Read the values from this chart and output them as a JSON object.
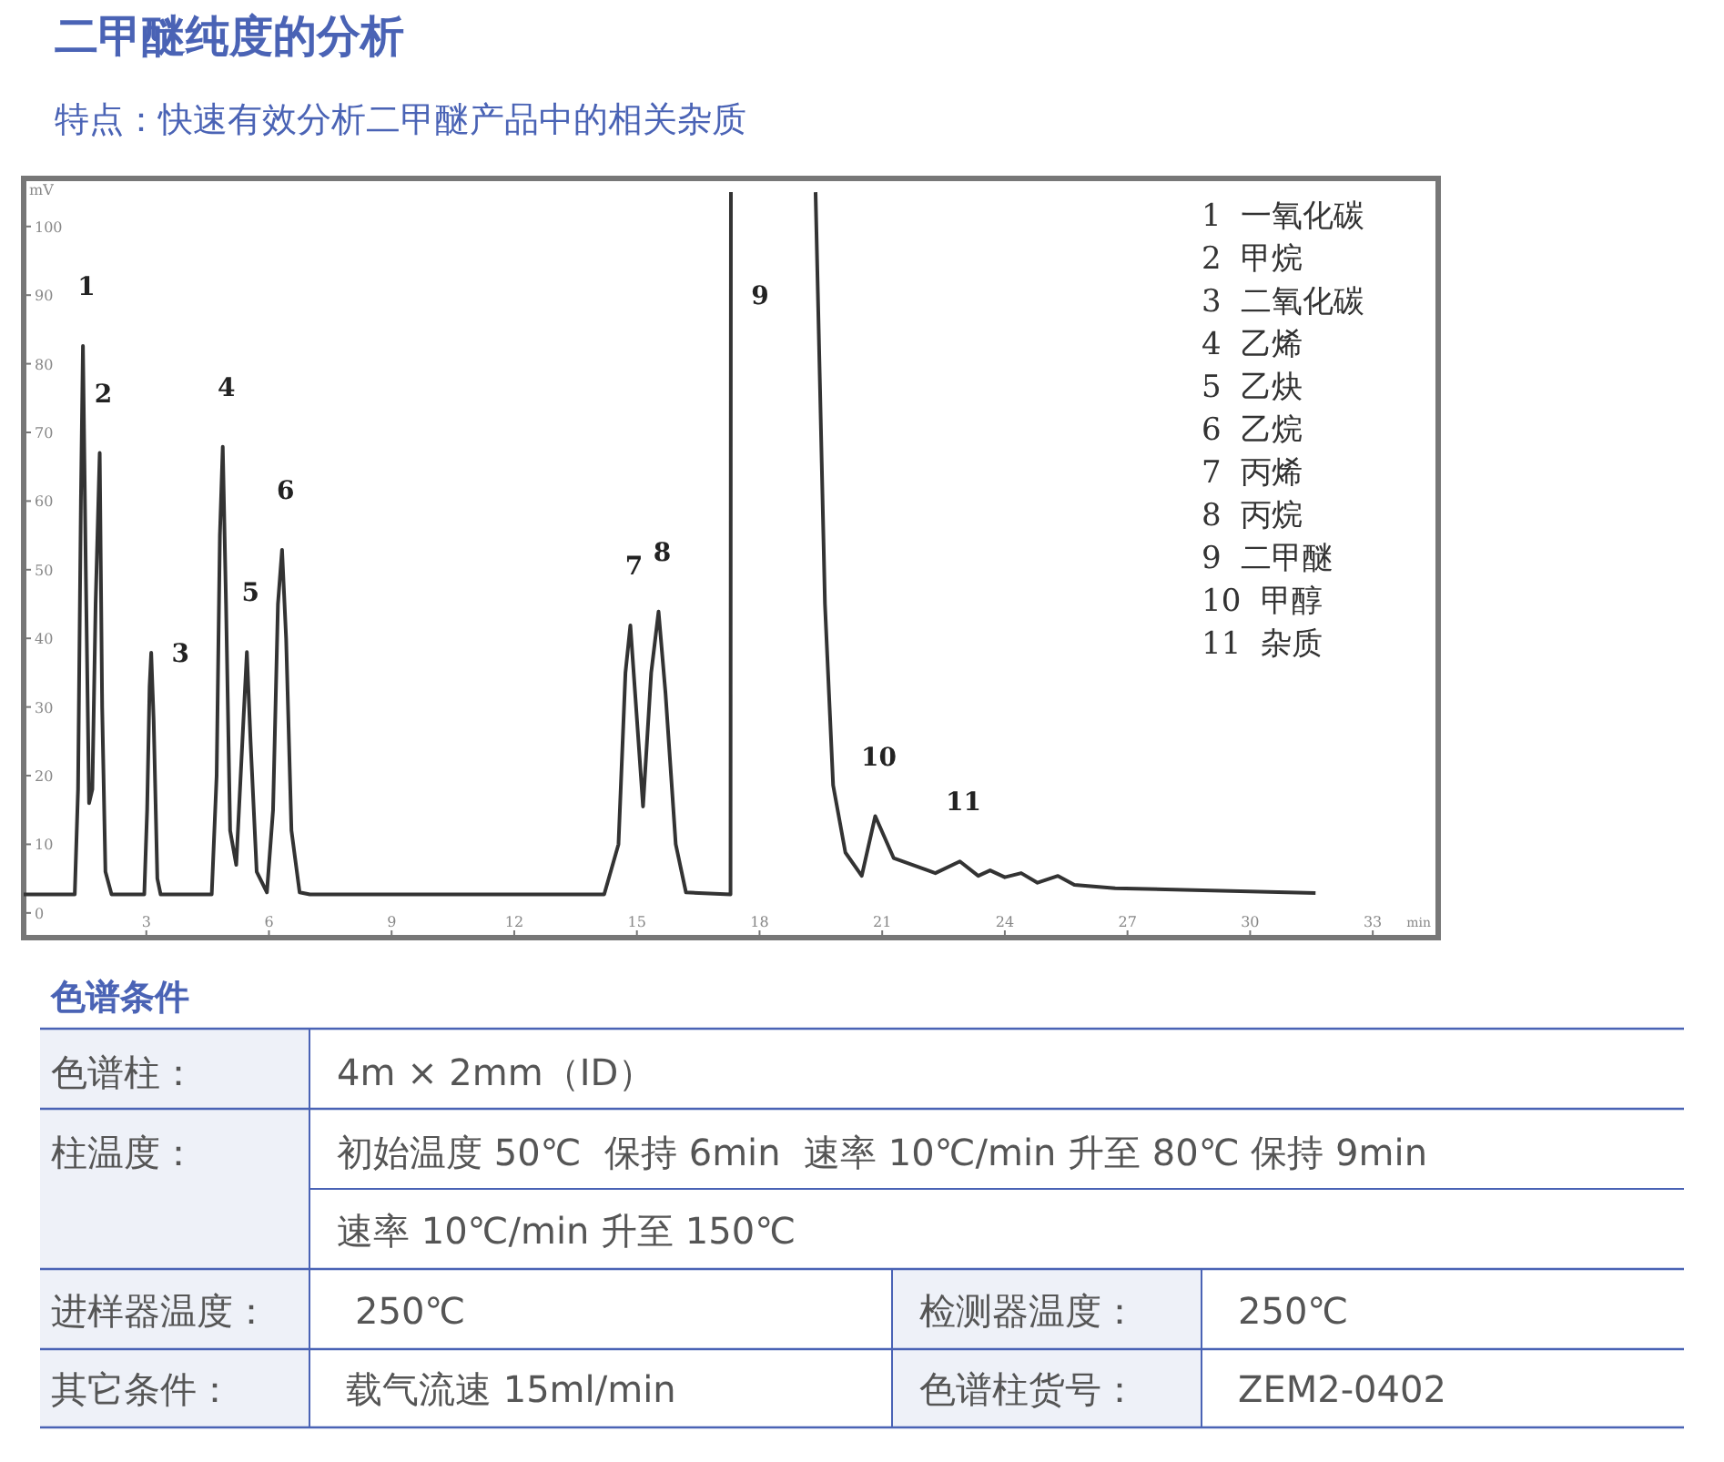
{
  "chart_data": {
    "type": "line",
    "title": "二甲醚纯度的分析",
    "subtitle": "特点：快速有效分析二甲醚产品中的相关杂质",
    "xlabel": "min",
    "ylabel": "mV",
    "xlim": [
      0,
      34.6
    ],
    "ylim": [
      -3.6,
      107
    ],
    "xticks": [
      3,
      6,
      9,
      12,
      15,
      18,
      21,
      24,
      27,
      30,
      33
    ],
    "yticks": [
      0,
      10,
      20,
      30,
      40,
      50,
      60,
      70,
      80,
      90,
      100
    ],
    "series": [
      {
        "color": "#333333",
        "x": [
          0,
          1.25,
          1.33,
          1.4,
          1.45,
          1.52,
          1.6,
          1.68,
          1.76,
          1.86,
          1.92,
          2.0,
          2.15,
          2.95,
          3.02,
          3.08,
          3.12,
          3.18,
          3.27,
          3.35,
          4.6,
          4.72,
          4.8,
          4.87,
          4.95,
          5.05,
          5.2,
          5.35,
          5.46,
          5.55,
          5.7,
          5.95,
          6.1,
          6.22,
          6.32,
          6.42,
          6.55,
          6.75,
          7.0,
          14.2,
          14.55,
          14.72,
          14.84,
          14.98,
          15.15,
          15.35,
          15.53,
          15.7,
          15.95,
          16.2,
          17.29,
          17.3
        ],
        "values": [
          2.7,
          2.7,
          18,
          60,
          82.6,
          50,
          16,
          18,
          45,
          67,
          30,
          6,
          2.7,
          2.7,
          15,
          33,
          37.9,
          28,
          5,
          2.7,
          2.7,
          20,
          55,
          67.9,
          45,
          12,
          7,
          25,
          38,
          25,
          6,
          3,
          15,
          45,
          52.9,
          40,
          12,
          3,
          2.7,
          2.7,
          10,
          35,
          41.9,
          30,
          15.5,
          35,
          43.9,
          32,
          10,
          3,
          2.7,
          105
        ]
      },
      {
        "color": "#333333",
        "x": [
          19.37,
          19.6,
          19.8,
          20.1,
          20.5,
          20.83,
          21.28,
          22.3,
          22.9,
          23.35,
          23.64,
          24,
          24.4,
          24.8,
          25.3,
          25.7,
          26.7,
          31.6
        ],
        "values": [
          105,
          45,
          18.6,
          8.8,
          5.4,
          14.1,
          8,
          5.8,
          7.5,
          5.4,
          6.2,
          5.2,
          5.8,
          4.4,
          5.4,
          4.1,
          3.6,
          2.9
        ]
      }
    ],
    "annotations": [
      {
        "text": "1",
        "x": 1.45,
        "y": 82.6
      },
      {
        "text": "2",
        "x": 1.86,
        "y": 67
      },
      {
        "text": "3",
        "x": 3.12,
        "y": 37.9
      },
      {
        "text": "4",
        "x": 4.87,
        "y": 67.9
      },
      {
        "text": "5",
        "x": 5.46,
        "y": 38
      },
      {
        "text": "6",
        "x": 6.32,
        "y": 52.9
      },
      {
        "text": "7",
        "x": 14.84,
        "y": 41.9
      },
      {
        "text": "8",
        "x": 15.53,
        "y": 43.9
      },
      {
        "text": "9",
        "x": 17.3,
        "y": 90
      },
      {
        "text": "10",
        "x": 20.83,
        "y": 14.1
      },
      {
        "text": "11",
        "x": 22.9,
        "y": 7.5
      },
      "1  一氧化碳",
      "2  甲烷",
      "3  二氧化碳",
      "4  乙烯",
      "5  乙炔",
      "6  乙烷",
      "7  丙烯",
      "8  丙烷",
      "9  二甲醚",
      "10  甲醇",
      "11  杂质",
      "色谱条件",
      "色谱柱：",
      "4m × 2mm（ID）",
      "柱温度：",
      "初始温度 50℃  保持 6min  速率 10℃/min 升至 80℃ 保持 9min",
      "速率 10℃/min 升至 150℃",
      "进样器温度：",
      "250℃",
      "检测器温度：",
      "250℃",
      "其它条件：",
      "载气流速 15ml/min",
      "色谱柱货号：",
      "ZEM2-0402"
    ]
  }
}
